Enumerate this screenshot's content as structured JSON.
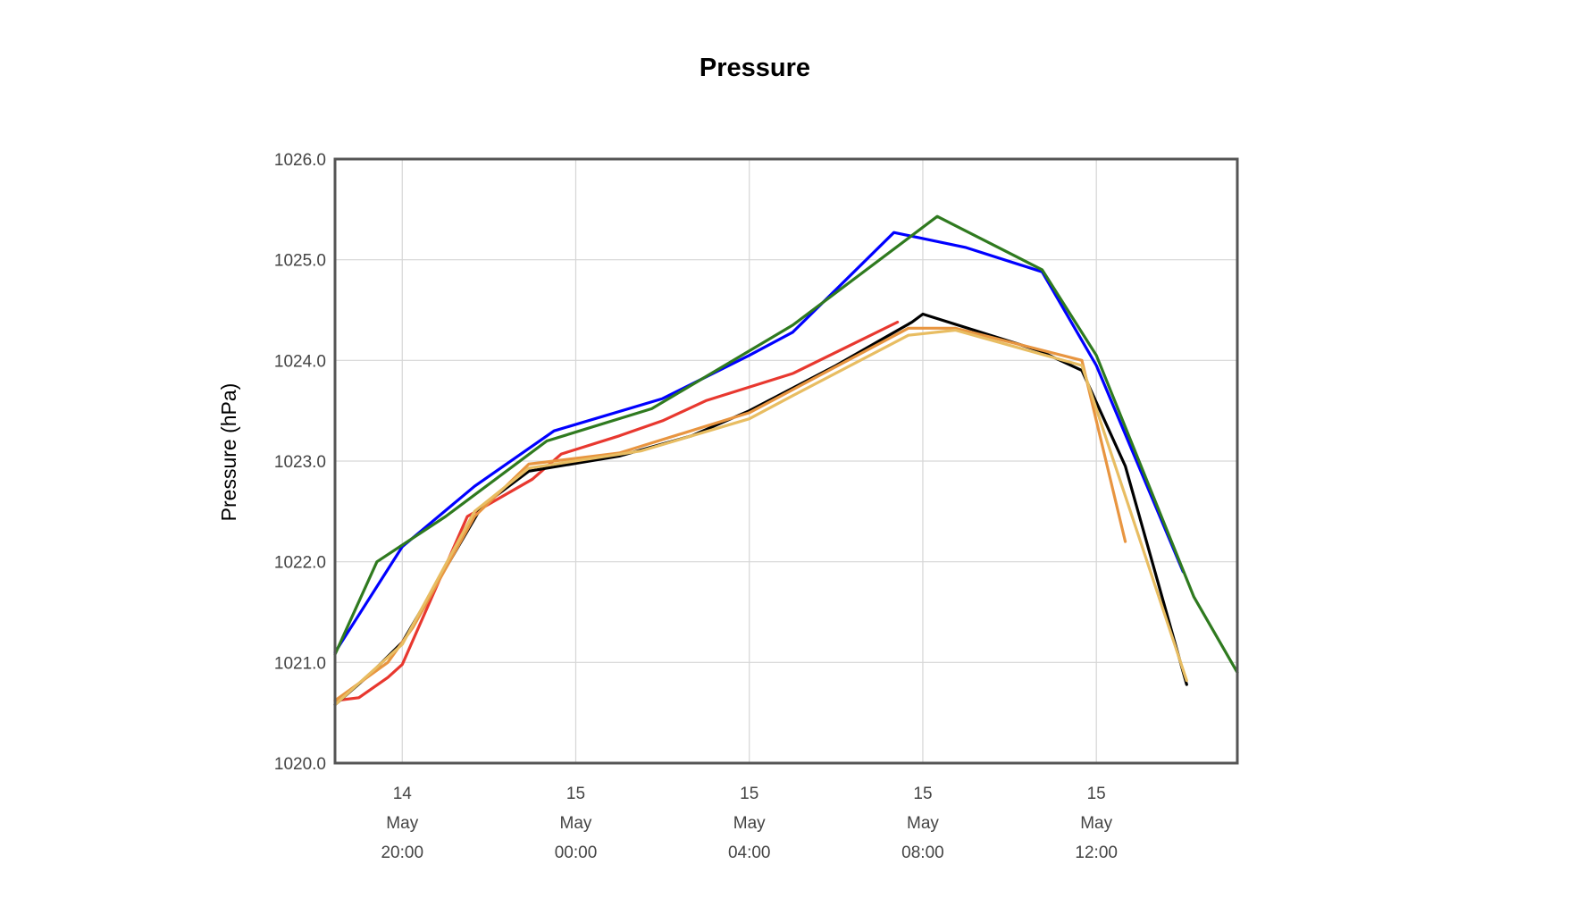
{
  "chart_data": {
    "type": "line",
    "title": "Pressure",
    "ylabel": "Pressure (hPa)",
    "xlabel": "",
    "ylim": [
      1020.0,
      1026.0
    ],
    "xlim": [
      "2024-05-14T18:27",
      "2024-05-15T15:15"
    ],
    "grid": true,
    "legend": "none",
    "y_ticks": [
      {
        "value": 1020.0,
        "label": "1020.0"
      },
      {
        "value": 1021.0,
        "label": "1021.0"
      },
      {
        "value": 1022.0,
        "label": "1022.0"
      },
      {
        "value": 1023.0,
        "label": "1023.0"
      },
      {
        "value": 1024.0,
        "label": "1024.0"
      },
      {
        "value": 1025.0,
        "label": "1025.0"
      },
      {
        "value": 1026.0,
        "label": "1026.0"
      }
    ],
    "x_ticks": [
      {
        "value": "2024-05-14T20:00",
        "day": "14",
        "month": "May",
        "time": "20:00"
      },
      {
        "value": "2024-05-15T00:00",
        "day": "15",
        "month": "May",
        "time": "00:00"
      },
      {
        "value": "2024-05-15T04:00",
        "day": "15",
        "month": "May",
        "time": "04:00"
      },
      {
        "value": "2024-05-15T08:00",
        "day": "15",
        "month": "May",
        "time": "08:00"
      },
      {
        "value": "2024-05-15T12:00",
        "day": "15",
        "month": "May",
        "time": "12:00"
      }
    ],
    "series": [
      {
        "color": "#0000ff",
        "points": [
          [
            "2024-05-14T18:27",
            1021.1
          ],
          [
            "2024-05-14T20:00",
            1022.15
          ],
          [
            "2024-05-14T21:40",
            1022.75
          ],
          [
            "2024-05-14T23:30",
            1023.3
          ],
          [
            "2024-05-15T02:00",
            1023.62
          ],
          [
            "2024-05-15T04:00",
            1024.05
          ],
          [
            "2024-05-15T05:00",
            1024.28
          ],
          [
            "2024-05-15T07:20",
            1025.27
          ],
          [
            "2024-05-15T09:00",
            1025.12
          ],
          [
            "2024-05-15T10:45",
            1024.88
          ],
          [
            "2024-05-15T12:00",
            1023.95
          ],
          [
            "2024-05-15T14:00",
            1021.9
          ]
        ]
      },
      {
        "color": "#2f7a1f",
        "points": [
          [
            "2024-05-14T18:27",
            1021.08
          ],
          [
            "2024-05-14T19:25",
            1022.0
          ],
          [
            "2024-05-14T21:00",
            1022.45
          ],
          [
            "2024-05-14T23:20",
            1023.2
          ],
          [
            "2024-05-15T01:45",
            1023.52
          ],
          [
            "2024-05-15T05:00",
            1024.35
          ],
          [
            "2024-05-15T08:20",
            1025.43
          ],
          [
            "2024-05-15T10:45",
            1024.9
          ],
          [
            "2024-05-15T12:00",
            1024.05
          ],
          [
            "2024-05-15T14:15",
            1021.65
          ],
          [
            "2024-05-15T15:15",
            1020.9
          ]
        ]
      },
      {
        "color": "#e8382f",
        "points": [
          [
            "2024-05-14T18:27",
            1020.62
          ],
          [
            "2024-05-14T19:00",
            1020.65
          ],
          [
            "2024-05-14T19:40",
            1020.85
          ],
          [
            "2024-05-14T20:00",
            1020.98
          ],
          [
            "2024-05-14T21:30",
            1022.45
          ],
          [
            "2024-05-14T23:00",
            1022.82
          ],
          [
            "2024-05-14T23:40",
            1023.07
          ],
          [
            "2024-05-15T01:00",
            1023.25
          ],
          [
            "2024-05-15T02:00",
            1023.4
          ],
          [
            "2024-05-15T03:00",
            1023.6
          ],
          [
            "2024-05-15T05:00",
            1023.87
          ],
          [
            "2024-05-15T07:25",
            1024.38
          ]
        ]
      },
      {
        "color": "#000000",
        "points": [
          [
            "2024-05-14T18:27",
            1020.58
          ],
          [
            "2024-05-14T19:15",
            1020.88
          ],
          [
            "2024-05-14T20:00",
            1021.2
          ],
          [
            "2024-05-14T21:50",
            1022.55
          ],
          [
            "2024-05-14T22:55",
            1022.9
          ],
          [
            "2024-05-15T01:00",
            1023.05
          ],
          [
            "2024-05-15T02:40",
            1023.25
          ],
          [
            "2024-05-15T04:00",
            1023.5
          ],
          [
            "2024-05-15T06:00",
            1023.95
          ],
          [
            "2024-05-15T07:45",
            1024.38
          ],
          [
            "2024-05-15T08:00",
            1024.46
          ],
          [
            "2024-05-15T10:40",
            1024.1
          ],
          [
            "2024-05-15T11:40",
            1023.9
          ],
          [
            "2024-05-15T12:40",
            1022.95
          ],
          [
            "2024-05-15T14:05",
            1020.78
          ]
        ]
      },
      {
        "color": "#e89540",
        "points": [
          [
            "2024-05-14T18:27",
            1020.62
          ],
          [
            "2024-05-14T19:40",
            1021.0
          ],
          [
            "2024-05-14T20:15",
            1021.35
          ],
          [
            "2024-05-14T21:40",
            1022.45
          ],
          [
            "2024-05-14T22:55",
            1022.97
          ],
          [
            "2024-05-15T01:00",
            1023.08
          ],
          [
            "2024-05-15T04:00",
            1023.48
          ],
          [
            "2024-05-15T07:40",
            1024.32
          ],
          [
            "2024-05-15T08:45",
            1024.32
          ],
          [
            "2024-05-15T11:40",
            1024.0
          ],
          [
            "2024-05-15T12:40",
            1022.2
          ]
        ]
      },
      {
        "color": "#e8bd62",
        "points": [
          [
            "2024-05-14T18:27",
            1020.58
          ],
          [
            "2024-05-14T20:00",
            1021.18
          ],
          [
            "2024-05-14T21:40",
            1022.5
          ],
          [
            "2024-05-14T22:55",
            1022.93
          ],
          [
            "2024-05-15T01:30",
            1023.1
          ],
          [
            "2024-05-15T04:00",
            1023.42
          ],
          [
            "2024-05-15T05:00",
            1023.65
          ],
          [
            "2024-05-15T07:40",
            1024.25
          ],
          [
            "2024-05-15T08:45",
            1024.3
          ],
          [
            "2024-05-15T11:40",
            1023.95
          ],
          [
            "2024-05-15T14:05",
            1020.82
          ]
        ]
      }
    ]
  }
}
